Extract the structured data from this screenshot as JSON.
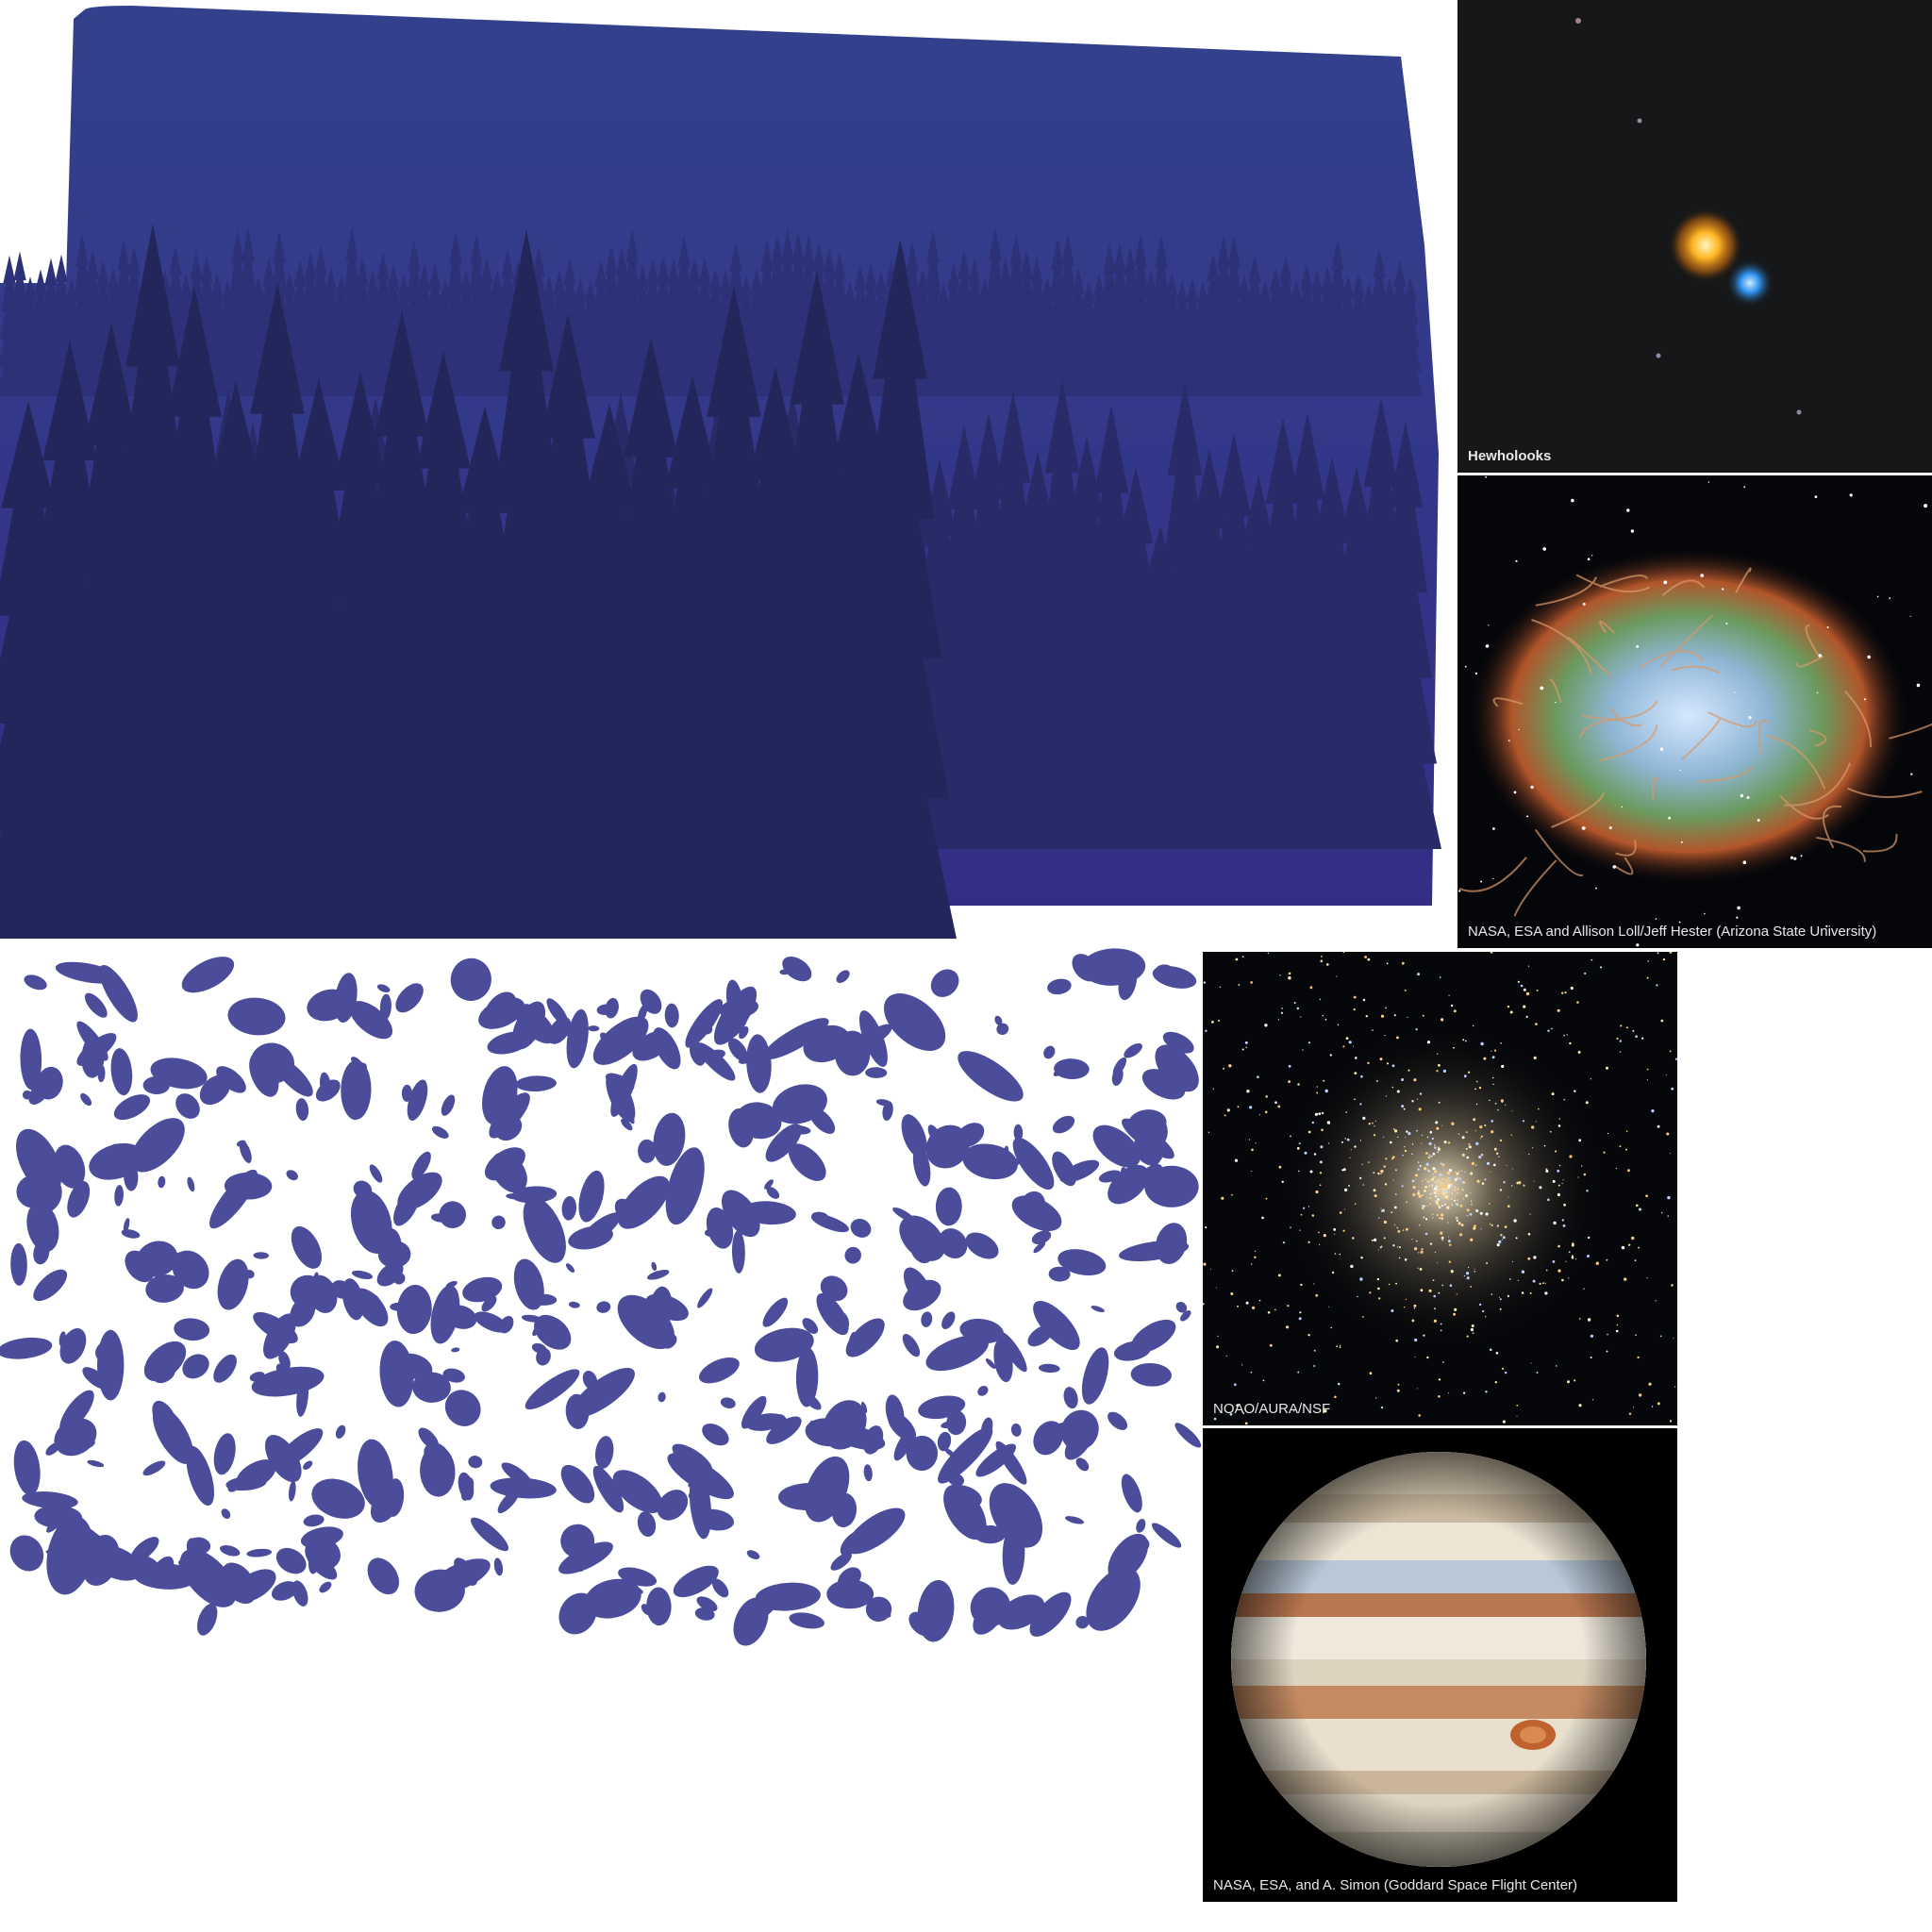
{
  "illustrations": {
    "forest": {
      "name": "forest-silhouette",
      "sky_color": "#33418c",
      "tree_colors": [
        "#2b2f78",
        "#262a62",
        "#222656"
      ]
    },
    "lakes": {
      "name": "lake-map",
      "fill_color": "#4b4c9a"
    }
  },
  "photos": [
    {
      "id": "binary-star",
      "credit": "Hewholooks"
    },
    {
      "id": "crab-nebula",
      "credit": "NASA, ESA and Allison Loll/Jeff Hester (Arizona State University)"
    },
    {
      "id": "globular-cluster",
      "credit": "NOAO/AURA/NSF"
    },
    {
      "id": "jupiter",
      "credit": "NASA, ESA, and A. Simon (Goddard Space Flight Center)"
    }
  ]
}
